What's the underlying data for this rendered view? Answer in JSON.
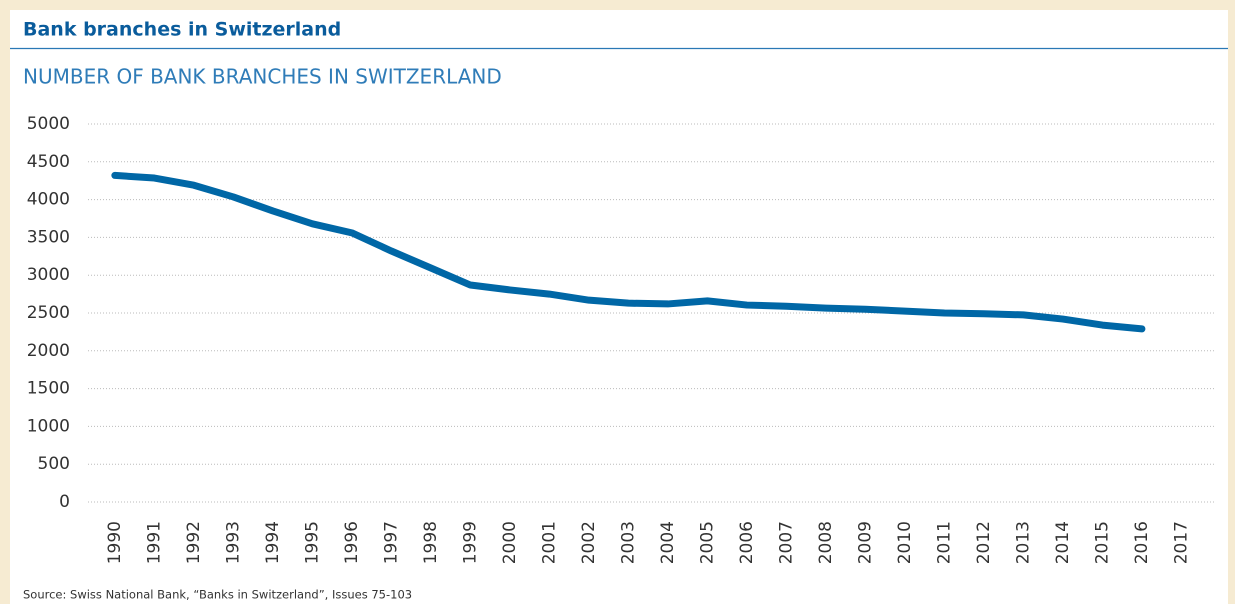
{
  "chart_data": {
    "type": "line",
    "header": "Bank branches in Switzerland",
    "title": "NUMBER OF BANK BRANCHES IN SWITZERLAND",
    "source": "Source: Swiss National Bank, “Banks in Switzerland”, Issues 75-103",
    "x": [
      1990,
      1991,
      1992,
      1993,
      1994,
      1995,
      1996,
      1997,
      1998,
      1999,
      2000,
      2001,
      2002,
      2003,
      2004,
      2005,
      2006,
      2007,
      2008,
      2009,
      2010,
      2011,
      2012,
      2013,
      2014,
      2015,
      2016
    ],
    "series": [
      {
        "name": "Bank branches",
        "color": "#0067a6",
        "values": [
          4320,
          4285,
          4190,
          4035,
          3850,
          3680,
          3560,
          3320,
          3095,
          2870,
          2805,
          2750,
          2670,
          2630,
          2620,
          2660,
          2605,
          2590,
          2565,
          2550,
          2525,
          2500,
          2490,
          2475,
          2420,
          2340,
          2290
        ]
      }
    ],
    "xlim": [
      1989.32,
      2017.85
    ],
    "xticks": [
      1990,
      1991,
      1992,
      1993,
      1994,
      1995,
      1996,
      1997,
      1998,
      1999,
      2000,
      2001,
      2002,
      2003,
      2004,
      2005,
      2006,
      2007,
      2008,
      2009,
      2010,
      2011,
      2012,
      2013,
      2014,
      2015,
      2016,
      2017
    ],
    "ylim": [
      0,
      5000
    ],
    "yticks": [
      0,
      500,
      1000,
      1500,
      2000,
      2500,
      3000,
      3500,
      4000,
      4500,
      5000
    ],
    "grid": true
  }
}
